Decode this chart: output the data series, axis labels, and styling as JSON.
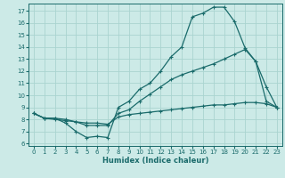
{
  "title": "",
  "xlabel": "Humidex (Indice chaleur)",
  "background_color": "#cceae7",
  "grid_color": "#aad4d0",
  "line_color": "#1a6b6b",
  "xlim": [
    -0.5,
    23.5
  ],
  "ylim": [
    5.8,
    17.6
  ],
  "xticks": [
    0,
    1,
    2,
    3,
    4,
    5,
    6,
    7,
    8,
    9,
    10,
    11,
    12,
    13,
    14,
    15,
    16,
    17,
    18,
    19,
    20,
    21,
    22,
    23
  ],
  "yticks": [
    6,
    7,
    8,
    9,
    10,
    11,
    12,
    13,
    14,
    15,
    16,
    17
  ],
  "line1_x": [
    0,
    1,
    2,
    3,
    4,
    5,
    6,
    7,
    8,
    9,
    10,
    11,
    12,
    13,
    14,
    15,
    16,
    17,
    18,
    19,
    20,
    21,
    22,
    23
  ],
  "line1_y": [
    8.5,
    8.1,
    8.1,
    7.7,
    7.0,
    6.5,
    6.6,
    6.5,
    9.0,
    9.5,
    10.5,
    11.0,
    12.0,
    13.2,
    14.0,
    16.5,
    16.8,
    17.3,
    17.3,
    16.1,
    13.9,
    12.8,
    10.7,
    9.0
  ],
  "line2_x": [
    0,
    1,
    2,
    3,
    4,
    5,
    6,
    7,
    8,
    9,
    10,
    11,
    12,
    13,
    14,
    15,
    16,
    17,
    18,
    19,
    20,
    21,
    22,
    23
  ],
  "line2_y": [
    8.5,
    8.1,
    8.1,
    8.0,
    7.8,
    7.5,
    7.5,
    7.5,
    8.5,
    8.8,
    9.5,
    10.1,
    10.7,
    11.3,
    11.7,
    12.0,
    12.3,
    12.6,
    13.0,
    13.4,
    13.8,
    12.8,
    9.5,
    9.0
  ],
  "line3_x": [
    0,
    1,
    2,
    3,
    4,
    5,
    6,
    7,
    8,
    9,
    10,
    11,
    12,
    13,
    14,
    15,
    16,
    17,
    18,
    19,
    20,
    21,
    22,
    23
  ],
  "line3_y": [
    8.5,
    8.1,
    8.0,
    7.9,
    7.8,
    7.7,
    7.7,
    7.6,
    8.2,
    8.4,
    8.5,
    8.6,
    8.7,
    8.8,
    8.9,
    9.0,
    9.1,
    9.2,
    9.2,
    9.3,
    9.4,
    9.4,
    9.3,
    9.0
  ]
}
